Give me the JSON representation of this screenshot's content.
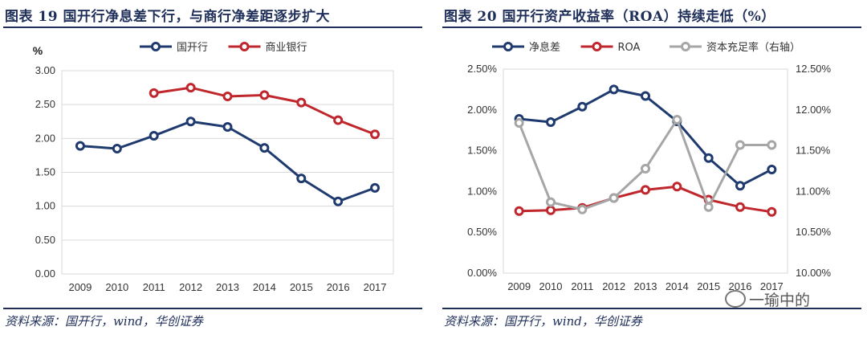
{
  "chart_data": [
    {
      "type": "line",
      "title": "图表 19 国开行净息差下行，与商行净差距逐步扩大",
      "ylabel": "%",
      "categories": [
        "2009",
        "2010",
        "2011",
        "2012",
        "2013",
        "2014",
        "2015",
        "2016",
        "2017"
      ],
      "ylim": [
        0,
        3.0
      ],
      "yticks": [
        "0.00",
        "0.50",
        "1.00",
        "1.50",
        "2.00",
        "2.50",
        "3.00"
      ],
      "grid": true,
      "legend": "top",
      "series": [
        {
          "name": "国开行",
          "color": "#1f3a6e",
          "values": [
            1.89,
            1.85,
            2.04,
            2.25,
            2.17,
            1.86,
            1.41,
            1.07,
            1.27
          ]
        },
        {
          "name": "商业银行",
          "color": "#c0272d",
          "values": [
            null,
            null,
            2.67,
            2.75,
            2.62,
            2.64,
            2.53,
            2.27,
            2.06
          ]
        }
      ],
      "source": "资料来源：国开行，wind，华创证券"
    },
    {
      "type": "line",
      "title": "图表 20 国开行资产收益率（ROA）持续走低（%）",
      "categories": [
        "2009",
        "2010",
        "2011",
        "2012",
        "2013",
        "2014",
        "2015",
        "2016",
        "2017"
      ],
      "ylim": [
        0,
        2.5
      ],
      "yticks": [
        "0.00%",
        "0.50%",
        "1.00%",
        "1.50%",
        "2.00%",
        "2.50%"
      ],
      "y2lim": [
        10.0,
        12.5
      ],
      "y2ticks": [
        "10.00%",
        "10.50%",
        "11.00%",
        "11.50%",
        "12.00%",
        "12.50%"
      ],
      "grid": false,
      "legend": "top",
      "series": [
        {
          "name": "净息差",
          "axis": "left",
          "color": "#1f3a6e",
          "values": [
            1.89,
            1.85,
            2.04,
            2.25,
            2.17,
            1.86,
            1.41,
            1.07,
            1.27
          ]
        },
        {
          "name": "ROA",
          "axis": "left",
          "color": "#c0272d",
          "values": [
            0.76,
            0.77,
            0.8,
            0.92,
            1.02,
            1.06,
            0.9,
            0.81,
            0.75
          ]
        },
        {
          "name": "资本充足率（右轴）",
          "axis": "right",
          "color": "#a6a6a6",
          "values": [
            11.84,
            10.87,
            10.78,
            10.92,
            11.28,
            11.88,
            10.81,
            11.57,
            11.57
          ]
        }
      ],
      "source": "资料来源：国开行，wind，华创证券"
    }
  ],
  "watermark": "一瑜中的"
}
